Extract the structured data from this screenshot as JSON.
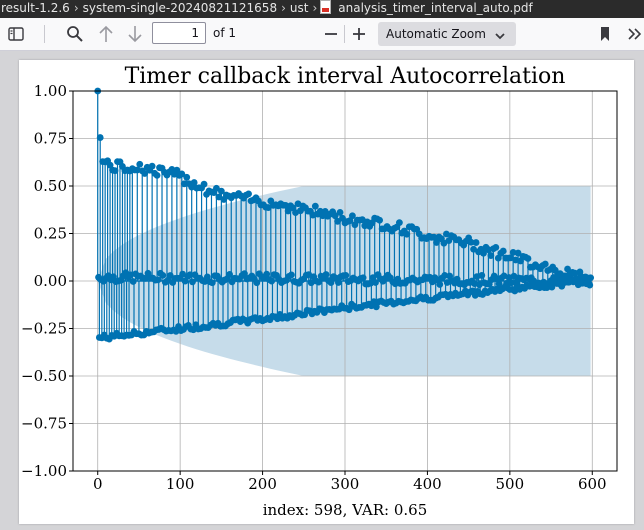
{
  "breadcrumb": {
    "items": [
      "result-1.2.6",
      "system-single-20240821121658",
      "ust",
      "analysis_timer_interval_auto.pdf"
    ]
  },
  "toolbar": {
    "sidebar_icon": "sidebar-toggle-icon",
    "page_number": "1",
    "page_count": "of 1",
    "zoom_label": "Automatic Zoom",
    "icons": [
      "search-icon",
      "arrow-up-icon",
      "arrow-down-icon",
      "minus-icon",
      "plus-icon",
      "chevron-down-icon",
      "bookmark-icon",
      "chevrons-right-icon"
    ]
  },
  "chart_data": {
    "type": "stem",
    "title": "Timer callback interval Autocorrelation",
    "xlabel": "index: 598, VAR: 0.65",
    "ylabel": "",
    "xlim": [
      -30,
      630
    ],
    "ylim": [
      -1.0,
      1.0
    ],
    "xticks": [
      "0",
      "100",
      "200",
      "300",
      "400",
      "500",
      "600"
    ],
    "yticks": [
      "1.00",
      "0.75",
      "0.50",
      "0.25",
      "0.00",
      "−0.25",
      "−0.50",
      "−0.75",
      "−1.00"
    ],
    "grid": true,
    "confidence_band": {
      "x": [
        0,
        598
      ],
      "upper_start": 0.0,
      "upper_max": 0.5,
      "color": "#c6dcea"
    },
    "stem_color": "#0072b2",
    "n_points": 598,
    "series_envelope": {
      "upper": [
        [
          0,
          1.0
        ],
        [
          5,
          0.63
        ],
        [
          20,
          0.6
        ],
        [
          50,
          0.6
        ],
        [
          100,
          0.55
        ],
        [
          150,
          0.45
        ],
        [
          200,
          0.42
        ],
        [
          250,
          0.38
        ],
        [
          300,
          0.33
        ],
        [
          350,
          0.3
        ],
        [
          400,
          0.24
        ],
        [
          450,
          0.2
        ],
        [
          500,
          0.13
        ],
        [
          550,
          0.07
        ],
        [
          598,
          0.0
        ]
      ],
      "middle": [
        [
          0,
          0.02
        ],
        [
          598,
          0.0
        ]
      ],
      "lower": [
        [
          0,
          -0.3
        ],
        [
          100,
          -0.25
        ],
        [
          200,
          -0.2
        ],
        [
          300,
          -0.14
        ],
        [
          400,
          -0.09
        ],
        [
          500,
          -0.04
        ],
        [
          598,
          0.0
        ]
      ]
    }
  }
}
